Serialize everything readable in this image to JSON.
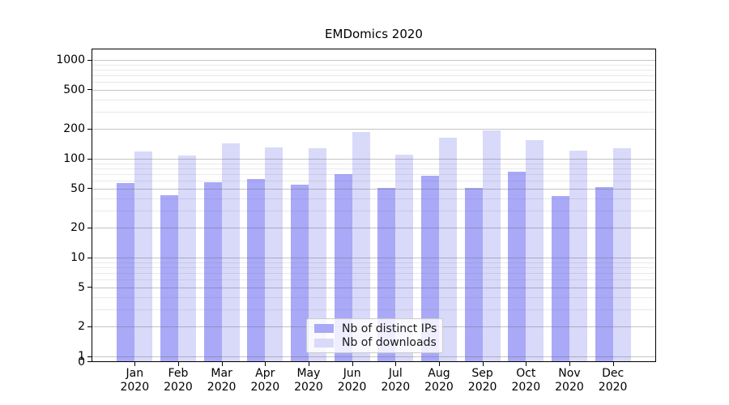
{
  "chart_data": {
    "type": "bar",
    "title": "EMDomics 2020",
    "categories": [
      "Jan",
      "Feb",
      "Mar",
      "Apr",
      "May",
      "Jun",
      "Jul",
      "Aug",
      "Sep",
      "Oct",
      "Nov",
      "Dec"
    ],
    "x_year_label": "2020",
    "series": [
      {
        "name": "Nb of distinct IPs",
        "color": "#a9a9f8",
        "values": [
          57,
          43,
          58,
          62,
          55,
          70,
          51,
          67,
          51,
          74,
          42,
          52
        ]
      },
      {
        "name": "Nb of downloads",
        "color": "#d9d9fa",
        "values": [
          118,
          108,
          142,
          131,
          128,
          185,
          110,
          162,
          193,
          153,
          121,
          127
        ]
      }
    ],
    "yscale": "symlog",
    "ylim": [
      0,
      1280
    ],
    "yticks": [
      0,
      1,
      2,
      5,
      10,
      20,
      50,
      100,
      200,
      500,
      1000
    ],
    "ytick_labels": [
      "0",
      "1",
      "2",
      "5",
      "10",
      "20",
      "50",
      "100",
      "200",
      "500",
      "1000"
    ],
    "minor_gridline_values": [
      3,
      4,
      6,
      7,
      8,
      9,
      30,
      40,
      60,
      70,
      80,
      90,
      300,
      400,
      600,
      700,
      800,
      900
    ],
    "grid": "both",
    "legend_position": "lower center",
    "xlabel": "",
    "ylabel": ""
  }
}
